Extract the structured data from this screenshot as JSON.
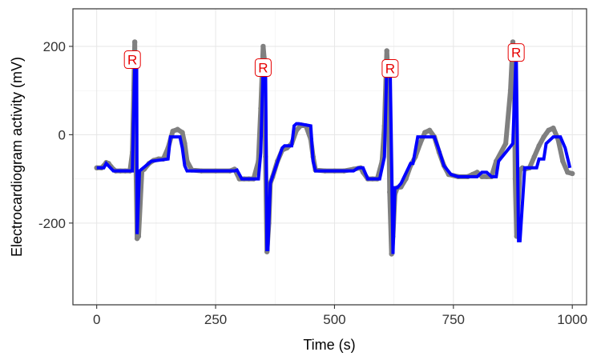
{
  "chart_data": {
    "type": "line",
    "title": "",
    "xlabel": "Time (s)",
    "ylabel": "Electrocardiogram activity (mV)",
    "xlim": [
      -50,
      1030
    ],
    "ylim": [
      -385,
      285
    ],
    "xticks": [
      0,
      250,
      500,
      750,
      1000
    ],
    "yticks": [
      -200,
      0,
      200
    ],
    "grid": true,
    "legend": "none",
    "colors": {
      "raw": "#808080",
      "segmented": "#0000ff",
      "r_peak": "#e60000"
    },
    "raw_signal": {
      "x": [
        0,
        10,
        15,
        20,
        25,
        30,
        35,
        40,
        50,
        60,
        70,
        75,
        78,
        80,
        82,
        85,
        88,
        95,
        100,
        110,
        120,
        130,
        140,
        150,
        160,
        170,
        180,
        185,
        190,
        200,
        220,
        250,
        280,
        290,
        300,
        310,
        320,
        330,
        340,
        345,
        350,
        352,
        355,
        358,
        362,
        365,
        370,
        380,
        390,
        400,
        410,
        420,
        430,
        440,
        450,
        455,
        460,
        480,
        500,
        520,
        540,
        555,
        560,
        570,
        580,
        590,
        600,
        605,
        610,
        613,
        616,
        620,
        623,
        627,
        632,
        640,
        650,
        660,
        670,
        680,
        690,
        700,
        710,
        720,
        730,
        740,
        760,
        780,
        790,
        800,
        810,
        820,
        830,
        840,
        860,
        870,
        875,
        878,
        880,
        883,
        886,
        890,
        895,
        900,
        910,
        920,
        930,
        940,
        950,
        960,
        970,
        980,
        990,
        1000
      ],
      "y": [
        -75,
        -75,
        -70,
        -63,
        -65,
        -72,
        -78,
        -82,
        -82,
        -82,
        -82,
        -40,
        100,
        210,
        -30,
        -235,
        -230,
        -82,
        -78,
        -65,
        -58,
        -55,
        -55,
        -30,
        8,
        12,
        5,
        -20,
        -60,
        -80,
        -82,
        -82,
        -82,
        -78,
        -100,
        -100,
        -100,
        -100,
        -60,
        60,
        200,
        175,
        -50,
        -265,
        -200,
        -110,
        -95,
        -60,
        -35,
        -30,
        -20,
        10,
        22,
        20,
        -10,
        -50,
        -80,
        -82,
        -82,
        -82,
        -78,
        -75,
        -85,
        -100,
        -100,
        -100,
        -60,
        20,
        190,
        120,
        -130,
        -270,
        -230,
        -135,
        -120,
        -118,
        -100,
        -70,
        -50,
        -20,
        5,
        10,
        -5,
        -40,
        -70,
        -90,
        -95,
        -95,
        -90,
        -85,
        -95,
        -95,
        -95,
        -60,
        -20,
        100,
        210,
        150,
        -100,
        -230,
        -160,
        -80,
        -75,
        -78,
        -75,
        -50,
        -25,
        -5,
        10,
        15,
        -10,
        -60,
        -85,
        -88
      ]
    },
    "segmented_signal": {
      "x": [
        0,
        15,
        20,
        35,
        75,
        80,
        84,
        85,
        90,
        115,
        150,
        155,
        175,
        180,
        185,
        190,
        290,
        295,
        305,
        315,
        340,
        345,
        350,
        355,
        358,
        360,
        365,
        390,
        395,
        410,
        415,
        420,
        425,
        450,
        455,
        460,
        480,
        510,
        540,
        550,
        560,
        570,
        580,
        595,
        605,
        610,
        617,
        623,
        627,
        632,
        640,
        660,
        665,
        675,
        680,
        710,
        720,
        730,
        745,
        760,
        790,
        800,
        810,
        820,
        830,
        840,
        845,
        875,
        882,
        887,
        890,
        900,
        925,
        930,
        940,
        945,
        960,
        965,
        975,
        985,
        995
      ],
      "y": [
        -75,
        -75,
        -65,
        -82,
        -82,
        160,
        160,
        -225,
        -82,
        -60,
        -55,
        -5,
        -5,
        -30,
        -70,
        -82,
        -82,
        -80,
        -100,
        -100,
        -100,
        -40,
        155,
        155,
        -260,
        -260,
        -110,
        -30,
        -25,
        -25,
        20,
        25,
        25,
        20,
        -60,
        -82,
        -82,
        -82,
        -82,
        -75,
        -75,
        -100,
        -100,
        -100,
        -50,
        155,
        155,
        -270,
        -120,
        -120,
        -110,
        -65,
        -65,
        -5,
        -5,
        -5,
        -35,
        -70,
        -90,
        -95,
        -95,
        -95,
        -85,
        -85,
        -95,
        -95,
        -60,
        -20,
        190,
        -240,
        -240,
        -75,
        -75,
        -55,
        -55,
        -20,
        -5,
        -5,
        -5,
        -30,
        -75
      ]
    },
    "annotations": [
      {
        "label": "R",
        "x": 75,
        "y": 170
      },
      {
        "label": "R",
        "x": 350,
        "y": 152
      },
      {
        "label": "R",
        "x": 617,
        "y": 150
      },
      {
        "label": "R",
        "x": 882,
        "y": 186
      }
    ]
  }
}
